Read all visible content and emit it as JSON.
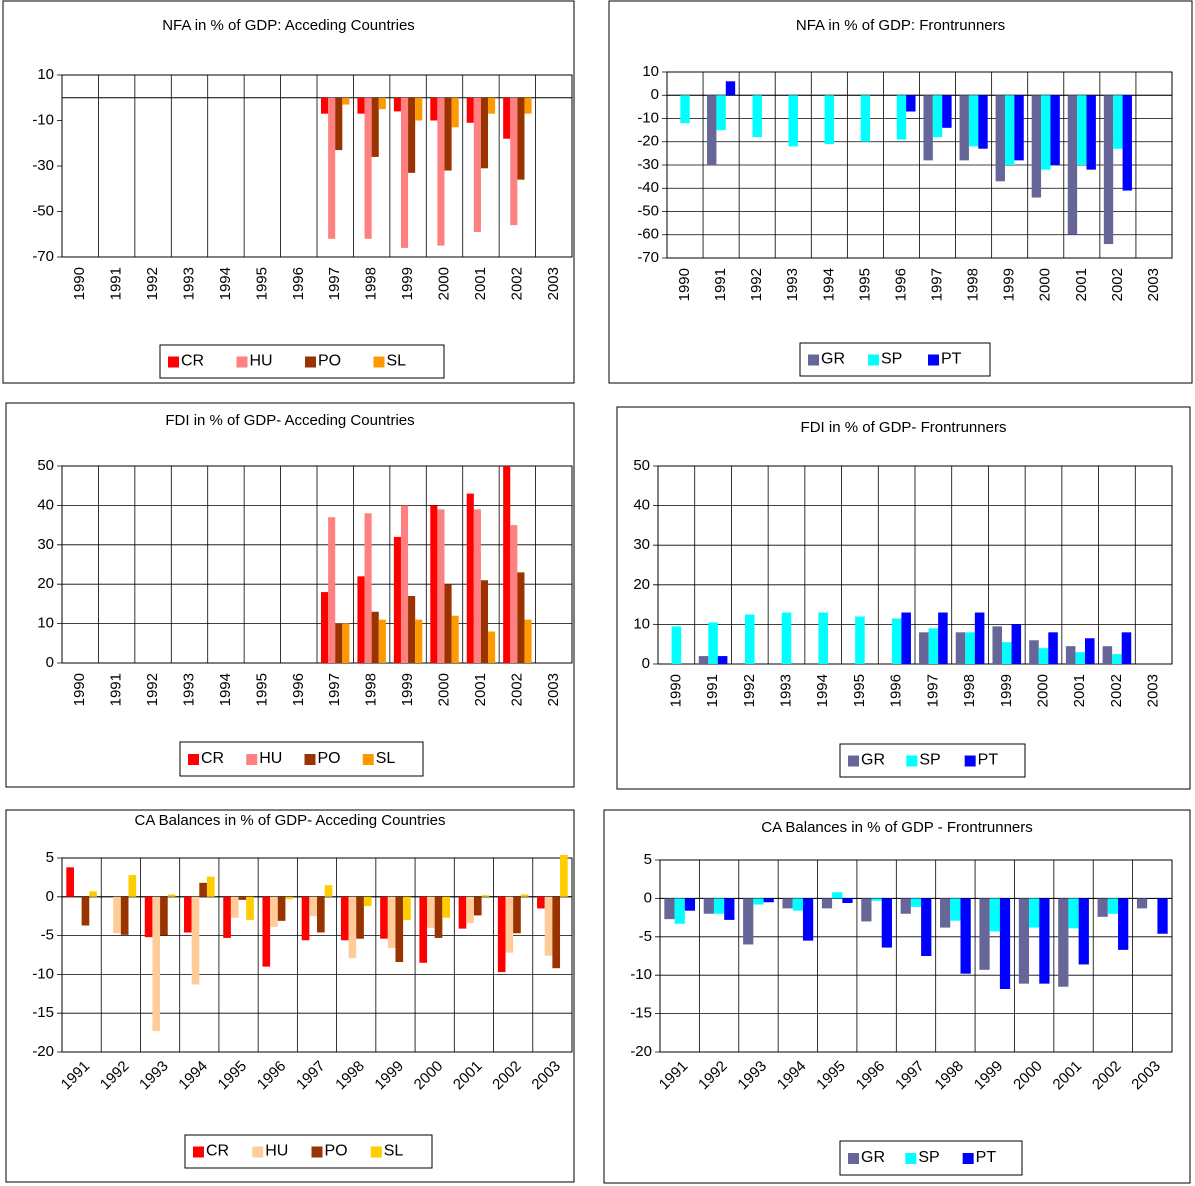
{
  "chart_data": [
    {
      "type": "bar",
      "title": "NFA in % of GDP: Acceding Countries",
      "categories": [
        "1990",
        "1991",
        "1992",
        "1993",
        "1994",
        "1995",
        "1996",
        "1997",
        "1998",
        "1999",
        "2000",
        "2001",
        "2002",
        "2003"
      ],
      "series": [
        {
          "name": "CR",
          "color": "#ff0000",
          "values": [
            null,
            null,
            null,
            null,
            null,
            null,
            null,
            -7,
            -7,
            -6,
            -10,
            -11,
            -18,
            null
          ]
        },
        {
          "name": "HU",
          "color": "#ff8080",
          "values": [
            null,
            null,
            null,
            null,
            null,
            null,
            null,
            -62,
            -62,
            -66,
            -65,
            -59,
            -56,
            null
          ]
        },
        {
          "name": "PO",
          "color": "#993300",
          "values": [
            null,
            null,
            null,
            null,
            null,
            null,
            null,
            -23,
            -26,
            -33,
            -32,
            -31,
            -36,
            null
          ]
        },
        {
          "name": "SL",
          "color": "#ff9900",
          "values": [
            null,
            null,
            null,
            null,
            null,
            null,
            null,
            -3,
            -5,
            -10,
            -13,
            -7,
            -7,
            null
          ]
        }
      ],
      "ylim": [
        -70,
        10
      ],
      "yticks": [
        10,
        -10,
        -30,
        -50,
        -70
      ],
      "grid": false,
      "legend": "bottom"
    },
    {
      "type": "bar",
      "title": "NFA in % of GDP: Frontrunners",
      "categories": [
        "1990",
        "1991",
        "1992",
        "1993",
        "1994",
        "1995",
        "1996",
        "1997",
        "1998",
        "1999",
        "2000",
        "2001",
        "2002",
        "2003"
      ],
      "series": [
        {
          "name": "GR",
          "color": "#666699",
          "values": [
            null,
            -30,
            null,
            null,
            null,
            null,
            null,
            -28,
            -28,
            -37,
            -44,
            -60,
            -64,
            null
          ]
        },
        {
          "name": "SP",
          "color": "#00ffff",
          "values": [
            -12,
            -15,
            -18,
            -22,
            -21,
            -20,
            -19,
            -18,
            -22,
            -30,
            -32,
            -30,
            -23,
            null
          ]
        },
        {
          "name": "PT",
          "color": "#0000ff",
          "values": [
            null,
            6,
            null,
            null,
            null,
            null,
            -7,
            -14,
            -23,
            -28,
            -30,
            -32,
            -41,
            null
          ]
        }
      ],
      "ylim": [
        -70,
        10
      ],
      "yticks": [
        10,
        0,
        -10,
        -20,
        -30,
        -40,
        -50,
        -60,
        -70
      ],
      "grid": true,
      "legend": "bottom"
    },
    {
      "type": "bar",
      "title": "FDI in % of GDP- Acceding Countries",
      "categories": [
        "1990",
        "1991",
        "1992",
        "1993",
        "1994",
        "1995",
        "1996",
        "1997",
        "1998",
        "1999",
        "2000",
        "2001",
        "2002",
        "2003"
      ],
      "series": [
        {
          "name": "CR",
          "color": "#ff0000",
          "values": [
            null,
            null,
            null,
            null,
            null,
            null,
            null,
            18,
            22,
            32,
            40,
            43,
            50,
            null
          ]
        },
        {
          "name": "HU",
          "color": "#ff8080",
          "values": [
            null,
            null,
            null,
            null,
            null,
            null,
            null,
            37,
            38,
            40,
            39,
            39,
            35,
            null
          ]
        },
        {
          "name": "PO",
          "color": "#993300",
          "values": [
            null,
            null,
            null,
            null,
            null,
            null,
            null,
            10,
            13,
            17,
            20,
            21,
            23,
            null
          ]
        },
        {
          "name": "SL",
          "color": "#ff9900",
          "values": [
            null,
            null,
            null,
            null,
            null,
            null,
            null,
            10,
            11,
            11,
            12,
            8,
            11,
            null
          ]
        }
      ],
      "ylim": [
        0,
        50
      ],
      "yticks": [
        0,
        10,
        20,
        30,
        40,
        50
      ],
      "grid": true,
      "legend": "bottom"
    },
    {
      "type": "bar",
      "title": "FDI in % of GDP- Frontrunners",
      "categories": [
        "1990",
        "1991",
        "1992",
        "1993",
        "1994",
        "1995",
        "1996",
        "1997",
        "1998",
        "1999",
        "2000",
        "2001",
        "2002",
        "2003"
      ],
      "series": [
        {
          "name": "GR",
          "color": "#666699",
          "values": [
            null,
            2,
            null,
            null,
            null,
            null,
            null,
            8,
            8,
            9.5,
            6,
            4.5,
            4.5,
            null
          ]
        },
        {
          "name": "SP",
          "color": "#00ffff",
          "values": [
            9.5,
            10.5,
            12.5,
            13,
            13,
            12,
            11.5,
            9,
            8,
            5.5,
            4,
            3,
            2.5,
            null
          ]
        },
        {
          "name": "PT",
          "color": "#0000ff",
          "values": [
            null,
            2,
            null,
            null,
            null,
            null,
            13,
            13,
            13,
            10,
            8,
            6.5,
            8,
            null
          ]
        }
      ],
      "ylim": [
        0,
        50
      ],
      "yticks": [
        0,
        10,
        20,
        30,
        40,
        50
      ],
      "grid": true,
      "legend": "bottom"
    },
    {
      "type": "bar",
      "title": "CA Balances in % of GDP- Acceding Countries",
      "categories": [
        "1991",
        "1992",
        "1993",
        "1994",
        "1995",
        "1996",
        "1997",
        "1998",
        "1999",
        "2000",
        "2001",
        "2002",
        "2003"
      ],
      "series": [
        {
          "name": "CR",
          "color": "#ff0000",
          "values": [
            3.8,
            null,
            -5.2,
            -4.6,
            -5.3,
            -9,
            -5.6,
            -5.6,
            -5.4,
            -8.5,
            -4.1,
            -9.7,
            -1.5
          ]
        },
        {
          "name": "HU",
          "color": "#ffcc99",
          "values": [
            null,
            -4.7,
            -17.3,
            -11.3,
            -2.7,
            -3.9,
            -2.5,
            -7.9,
            -6.6,
            -4,
            -3.4,
            -7.2,
            -7.6
          ]
        },
        {
          "name": "PO",
          "color": "#993300",
          "values": [
            -3.7,
            -4.9,
            -5,
            1.8,
            -0.4,
            -3.1,
            -4.6,
            -5.4,
            -8.4,
            -5.3,
            -2.4,
            -4.7,
            -9.2
          ]
        },
        {
          "name": "SL",
          "color": "#ffcc00",
          "values": [
            0.7,
            2.8,
            0.3,
            2.6,
            -3,
            -0.3,
            1.5,
            -1.2,
            -3,
            -2.7,
            0.2,
            0.3,
            5.4
          ]
        }
      ],
      "ylim": [
        -20,
        5
      ],
      "yticks": [
        5,
        0,
        -5,
        -10,
        -15,
        -20
      ],
      "grid": true,
      "legend": "bottom"
    },
    {
      "type": "bar",
      "title": "CA Balances in % of GDP - Frontrunners",
      "categories": [
        "1991",
        "1992",
        "1993",
        "1994",
        "1995",
        "1996",
        "1997",
        "1998",
        "1999",
        "2000",
        "2001",
        "2002",
        "2003"
      ],
      "series": [
        {
          "name": "GR",
          "color": "#666699",
          "values": [
            -2.7,
            -2,
            -6,
            -1.3,
            -1.3,
            -3,
            -2,
            -3.8,
            -9.3,
            -11.1,
            -11.5,
            -2.4,
            -1.3
          ]
        },
        {
          "name": "SP",
          "color": "#00ffff",
          "values": [
            -3.3,
            -2,
            -0.8,
            -1.6,
            0.8,
            -0.3,
            -1.1,
            -2.9,
            -4.3,
            -3.8,
            -3.9,
            -2,
            null
          ]
        },
        {
          "name": "PT",
          "color": "#0000ff",
          "values": [
            -1.6,
            -2.8,
            -0.5,
            -5.5,
            -0.6,
            -6.4,
            -7.5,
            -9.8,
            -11.8,
            -11.1,
            -8.6,
            -6.7,
            -4.6
          ]
        }
      ],
      "ylim": [
        -20,
        5
      ],
      "yticks": [
        5,
        0,
        -5,
        -10,
        -15,
        -20
      ],
      "grid": true,
      "legend": "bottom"
    }
  ]
}
